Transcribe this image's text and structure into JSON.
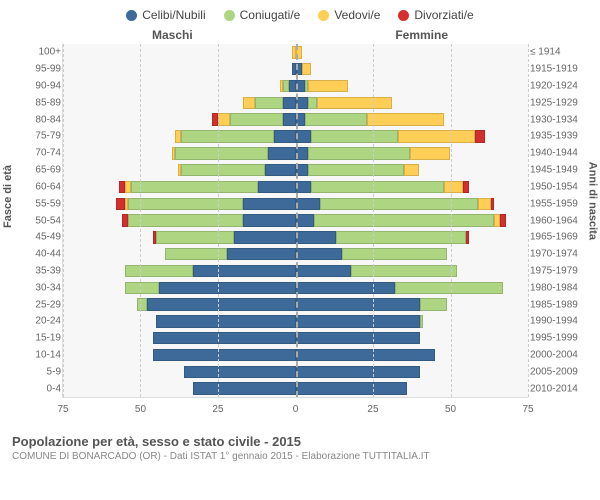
{
  "chart": {
    "type": "population-pyramid",
    "background_color": "#ffffff",
    "plot_background": "#f7f7f7",
    "grid_color": "#cccccc",
    "axis_color": "#dddddd",
    "legend": [
      {
        "label": "Celibi/Nubili",
        "color": "#3d6a98"
      },
      {
        "label": "Coniugati/e",
        "color": "#aed581"
      },
      {
        "label": "Vedovi/e",
        "color": "#ffce56"
      },
      {
        "label": "Divorziati/e",
        "color": "#d32f2f"
      }
    ],
    "colors": {
      "single": "#3d6a98",
      "married": "#aed581",
      "widowed": "#ffce56",
      "divorced": "#d32f2f"
    },
    "gender_labels": {
      "male": "Maschi",
      "female": "Femmine"
    },
    "axis_title_left": "Fasce di età",
    "axis_title_right": "Anni di nascita",
    "x_axis": {
      "min": -75,
      "max": 75,
      "ticks": [
        -75,
        -50,
        -25,
        0,
        25,
        50,
        75
      ],
      "tick_labels": [
        "75",
        "50",
        "25",
        "0",
        "25",
        "50",
        "75"
      ]
    },
    "left_labels": [
      "100+",
      "95-99",
      "90-94",
      "85-89",
      "80-84",
      "75-79",
      "70-74",
      "65-69",
      "60-64",
      "55-59",
      "50-54",
      "45-49",
      "40-44",
      "35-39",
      "30-34",
      "25-29",
      "20-24",
      "15-19",
      "10-14",
      "5-9",
      "0-4"
    ],
    "right_labels": [
      "≤ 1914",
      "1915-1919",
      "1920-1924",
      "1925-1929",
      "1930-1934",
      "1935-1939",
      "1940-1944",
      "1945-1949",
      "1950-1954",
      "1955-1959",
      "1960-1964",
      "1965-1969",
      "1970-1974",
      "1975-1979",
      "1980-1984",
      "1985-1989",
      "1990-1994",
      "1995-1999",
      "2000-2004",
      "2005-2009",
      "2010-2014"
    ],
    "rows": [
      {
        "m": {
          "single": 0,
          "married": 0,
          "widowed": 1,
          "divorced": 0
        },
        "f": {
          "single": 0,
          "married": 0,
          "widowed": 2,
          "divorced": 0
        }
      },
      {
        "m": {
          "single": 1,
          "married": 0,
          "widowed": 0,
          "divorced": 0
        },
        "f": {
          "single": 2,
          "married": 0,
          "widowed": 3,
          "divorced": 0
        }
      },
      {
        "m": {
          "single": 2,
          "married": 2,
          "widowed": 1,
          "divorced": 0
        },
        "f": {
          "single": 3,
          "married": 1,
          "widowed": 13,
          "divorced": 0
        }
      },
      {
        "m": {
          "single": 4,
          "married": 9,
          "widowed": 4,
          "divorced": 0
        },
        "f": {
          "single": 4,
          "married": 3,
          "widowed": 24,
          "divorced": 0
        }
      },
      {
        "m": {
          "single": 4,
          "married": 17,
          "widowed": 4,
          "divorced": 2
        },
        "f": {
          "single": 3,
          "married": 20,
          "widowed": 25,
          "divorced": 0
        }
      },
      {
        "m": {
          "single": 7,
          "married": 30,
          "widowed": 2,
          "divorced": 0
        },
        "f": {
          "single": 5,
          "married": 28,
          "widowed": 25,
          "divorced": 3
        }
      },
      {
        "m": {
          "single": 9,
          "married": 30,
          "widowed": 1,
          "divorced": 0
        },
        "f": {
          "single": 4,
          "married": 33,
          "widowed": 13,
          "divorced": 0
        }
      },
      {
        "m": {
          "single": 10,
          "married": 27,
          "widowed": 1,
          "divorced": 0
        },
        "f": {
          "single": 4,
          "married": 31,
          "widowed": 5,
          "divorced": 0
        }
      },
      {
        "m": {
          "single": 12,
          "married": 41,
          "widowed": 2,
          "divorced": 2
        },
        "f": {
          "single": 5,
          "married": 43,
          "widowed": 6,
          "divorced": 2
        }
      },
      {
        "m": {
          "single": 17,
          "married": 37,
          "widowed": 1,
          "divorced": 3
        },
        "f": {
          "single": 8,
          "married": 51,
          "widowed": 4,
          "divorced": 1
        }
      },
      {
        "m": {
          "single": 17,
          "married": 37,
          "widowed": 0,
          "divorced": 2
        },
        "f": {
          "single": 6,
          "married": 58,
          "widowed": 2,
          "divorced": 2
        }
      },
      {
        "m": {
          "single": 20,
          "married": 25,
          "widowed": 0,
          "divorced": 1
        },
        "f": {
          "single": 13,
          "married": 42,
          "widowed": 0,
          "divorced": 1
        }
      },
      {
        "m": {
          "single": 22,
          "married": 20,
          "widowed": 0,
          "divorced": 0
        },
        "f": {
          "single": 15,
          "married": 34,
          "widowed": 0,
          "divorced": 0
        }
      },
      {
        "m": {
          "single": 33,
          "married": 22,
          "widowed": 0,
          "divorced": 0
        },
        "f": {
          "single": 18,
          "married": 34,
          "widowed": 0,
          "divorced": 0
        }
      },
      {
        "m": {
          "single": 44,
          "married": 11,
          "widowed": 0,
          "divorced": 0
        },
        "f": {
          "single": 32,
          "married": 35,
          "widowed": 0,
          "divorced": 0
        }
      },
      {
        "m": {
          "single": 48,
          "married": 3,
          "widowed": 0,
          "divorced": 0
        },
        "f": {
          "single": 40,
          "married": 9,
          "divorced": 0,
          "widowed": 0
        }
      },
      {
        "m": {
          "single": 45,
          "married": 0,
          "widowed": 0,
          "divorced": 0
        },
        "f": {
          "single": 40,
          "married": 1,
          "widowed": 0,
          "divorced": 0
        }
      },
      {
        "m": {
          "single": 46,
          "married": 0,
          "widowed": 0,
          "divorced": 0
        },
        "f": {
          "single": 40,
          "married": 0,
          "widowed": 0,
          "divorced": 0
        }
      },
      {
        "m": {
          "single": 46,
          "married": 0,
          "widowed": 0,
          "divorced": 0
        },
        "f": {
          "single": 45,
          "married": 0,
          "widowed": 0,
          "divorced": 0
        }
      },
      {
        "m": {
          "single": 36,
          "married": 0,
          "widowed": 0,
          "divorced": 0
        },
        "f": {
          "single": 40,
          "married": 0,
          "widowed": 0,
          "divorced": 0
        }
      },
      {
        "m": {
          "single": 33,
          "married": 0,
          "widowed": 0,
          "divorced": 0
        },
        "f": {
          "single": 36,
          "married": 0,
          "widowed": 0,
          "divorced": 0
        }
      }
    ],
    "bar_height_ratio": 0.74,
    "title_fontsize": 13,
    "label_fontsize": 10,
    "legend_fontsize": 12
  },
  "footer": {
    "title": "Popolazione per età, sesso e stato civile - 2015",
    "subtitle": "COMUNE DI BONARCADO (OR) - Dati ISTAT 1° gennaio 2015 - Elaborazione TUTTITALIA.IT"
  }
}
